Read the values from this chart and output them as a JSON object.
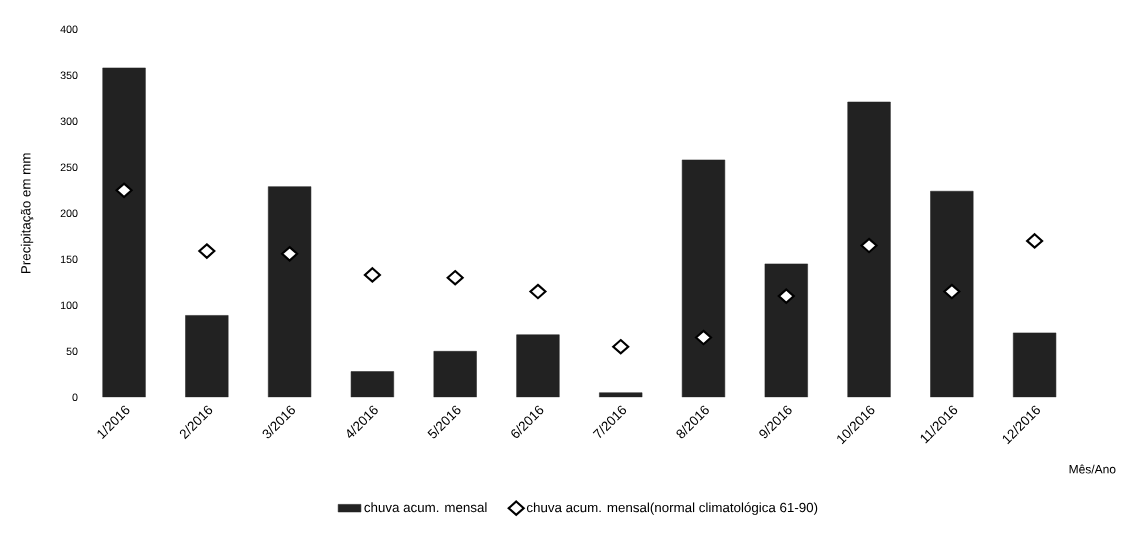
{
  "chart_data": {
    "type": "bar",
    "ylabel": "Precipitação em mm",
    "xlabel": "Mês/Ano",
    "categories": [
      "1/2016",
      "2/2016",
      "3/2016",
      "4/2016",
      "5/2016",
      "6/2016",
      "7/2016",
      "8/2016",
      "9/2016",
      "10/2016",
      "11/2016",
      "12/2016"
    ],
    "series": [
      {
        "name": "chuva acum. mensal",
        "color": "#222222",
        "values": [
          358,
          89,
          229,
          28,
          50,
          68,
          5,
          258,
          145,
          321,
          224,
          70
        ]
      },
      {
        "name": "chuva acum. mensal(normal climatológica 61-90)",
        "type": "scatter",
        "color": "#000000",
        "values": [
          225,
          159,
          156,
          133,
          130,
          115,
          55,
          65,
          110,
          165,
          115,
          170
        ]
      }
    ],
    "marker": "diamond",
    "ylim": [
      0,
      400
    ],
    "yticks": [
      0,
      50,
      100,
      150,
      200,
      250,
      300,
      350,
      400
    ],
    "legend": "bottom"
  }
}
